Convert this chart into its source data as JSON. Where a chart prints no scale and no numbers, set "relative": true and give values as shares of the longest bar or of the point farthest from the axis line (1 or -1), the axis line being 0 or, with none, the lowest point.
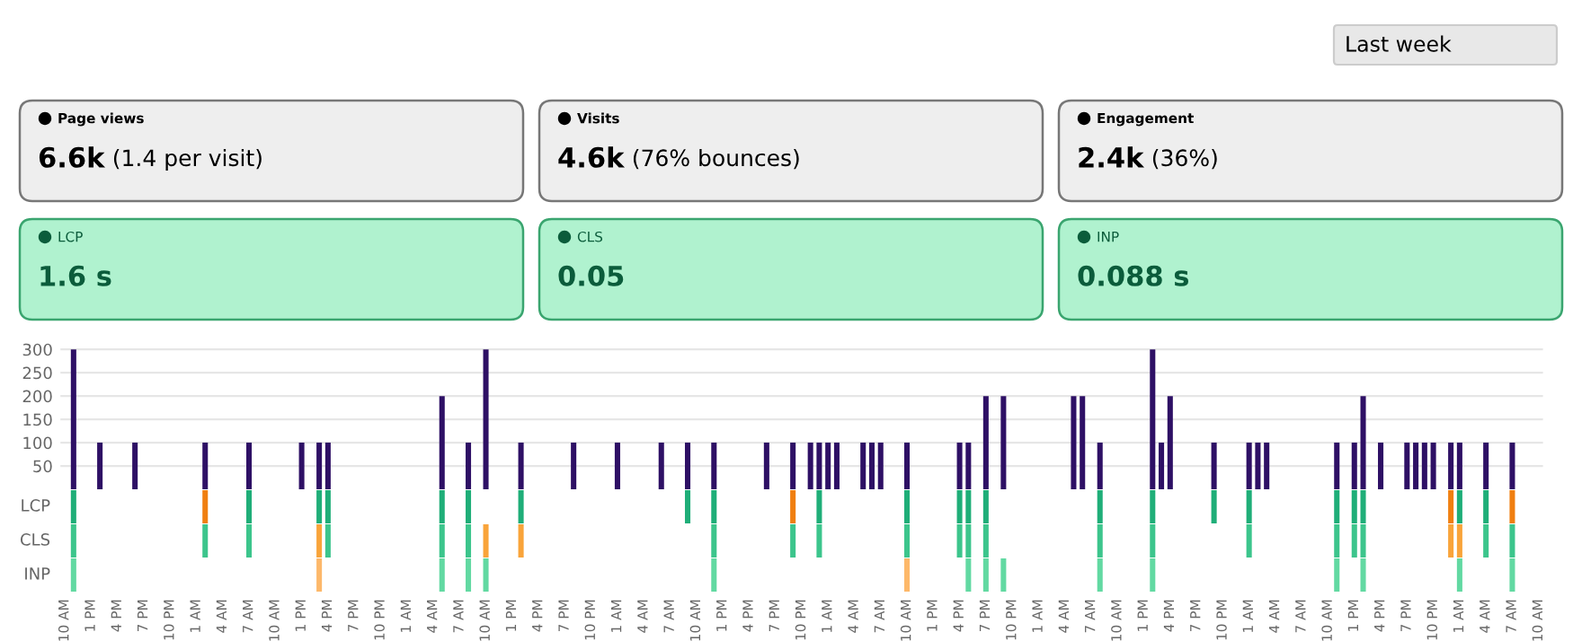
{
  "chart_data": [
    {
      "type": "other",
      "title": "Last week",
      "categories": [
        "Page views",
        "Visits",
        "Engagement",
        "LCP",
        "CLS",
        "INP"
      ],
      "value_labels": [
        "6.6k",
        "4.6k",
        "2.4k",
        "1.6 s",
        "0.05",
        "0.088 s"
      ],
      "annotations": [
        "(1.4 per visit)",
        "(76% bounces)",
        "(36%)"
      ],
      "colors": [
        "#eeeeee",
        "#eeeeee",
        "#eeeeee",
        "#b0f2cf",
        "#b0f2cf",
        "#b0f2cf"
      ]
    },
    {
      "type": "bar",
      "color": "#2e1065",
      "ylim": [
        0,
        310
      ],
      "yticks": [
        50,
        100,
        150,
        200,
        250,
        300
      ],
      "grid": "y",
      "tick_labels": "y",
      "categories": [
        null,
        null,
        null,
        null,
        null,
        null,
        null,
        null,
        null,
        null,
        null,
        null,
        null,
        null,
        null,
        null,
        null,
        null,
        null,
        null,
        null,
        null,
        null,
        null,
        null,
        null,
        null,
        null,
        null,
        null,
        null,
        null,
        null,
        null,
        null,
        null,
        null,
        null,
        null,
        null,
        null,
        null,
        null,
        null,
        null,
        null,
        null,
        null,
        null,
        null,
        null,
        null,
        null,
        null,
        null,
        null,
        null,
        null,
        null,
        null,
        null,
        null,
        null,
        null,
        null,
        null,
        null,
        null,
        null,
        null,
        null,
        null,
        null,
        null,
        null,
        null,
        null,
        null,
        null,
        null,
        null,
        null,
        null,
        null,
        null,
        null,
        null,
        null,
        null,
        null,
        null,
        null,
        null,
        null,
        null,
        null,
        null,
        null,
        null,
        null,
        null,
        null,
        null,
        null,
        null,
        null,
        null,
        null,
        null,
        null,
        null,
        null,
        null,
        null,
        null,
        null,
        null,
        null,
        null,
        null,
        null,
        null,
        null,
        null,
        null,
        null,
        null,
        null,
        null,
        null,
        null,
        null,
        null,
        null,
        null,
        null,
        null,
        null,
        null,
        null,
        null,
        null,
        null,
        null,
        null,
        null,
        null,
        null,
        null,
        null,
        null,
        null,
        null,
        null,
        null,
        null,
        null,
        null,
        null,
        null,
        null,
        null,
        null,
        null,
        null,
        null,
        null,
        null,
        null
      ],
      "values": [
        null,
        300,
        null,
        null,
        100,
        null,
        null,
        null,
        100,
        null,
        null,
        null,
        null,
        null,
        null,
        null,
        100,
        null,
        null,
        null,
        null,
        100,
        null,
        null,
        null,
        null,
        null,
        100,
        null,
        100,
        100,
        null,
        null,
        null,
        null,
        null,
        null,
        null,
        null,
        null,
        null,
        null,
        null,
        200,
        null,
        null,
        100,
        null,
        300,
        null,
        null,
        null,
        100,
        null,
        null,
        null,
        null,
        null,
        100,
        null,
        null,
        null,
        null,
        100,
        null,
        null,
        null,
        null,
        100,
        null,
        null,
        100,
        null,
        null,
        100,
        null,
        null,
        null,
        null,
        null,
        100,
        null,
        null,
        100,
        null,
        100,
        100,
        100,
        100,
        null,
        null,
        100,
        100,
        100,
        null,
        null,
        100,
        null,
        null,
        null,
        null,
        null,
        100,
        100,
        null,
        200,
        null,
        200,
        null,
        null,
        null,
        null,
        null,
        null,
        null,
        200,
        200,
        null,
        100,
        null,
        null,
        null,
        null,
        null,
        300,
        100,
        200,
        null,
        null,
        null,
        null,
        100,
        null,
        null,
        null,
        100,
        100,
        100,
        null,
        null,
        null,
        null,
        null,
        null,
        null,
        100,
        null,
        100,
        200,
        null,
        100,
        null,
        null,
        100,
        100,
        100,
        100,
        null,
        100,
        100,
        null,
        null,
        100,
        null,
        null,
        100,
        null,
        null,
        null
      ]
    },
    {
      "type": "bar",
      "relative": true,
      "ylabel": "LCP",
      "categories": [
        null,
        null,
        null,
        null,
        null,
        null,
        null,
        null,
        null,
        null,
        null,
        null,
        null,
        null,
        null,
        null,
        null,
        null,
        null,
        null,
        null,
        null,
        null,
        null,
        null,
        null,
        null,
        null,
        null,
        null,
        null,
        null,
        null,
        null,
        null,
        null,
        null,
        null,
        null,
        null,
        null,
        null,
        null,
        null,
        null,
        null,
        null,
        null,
        null,
        null,
        null,
        null,
        null,
        null,
        null,
        null,
        null,
        null,
        null,
        null,
        null,
        null,
        null,
        null,
        null,
        null,
        null,
        null,
        null,
        null,
        null,
        null,
        null,
        null,
        null,
        null,
        null,
        null,
        null,
        null,
        null,
        null,
        null,
        null,
        null,
        null,
        null,
        null,
        null,
        null,
        null,
        null,
        null,
        null,
        null,
        null,
        null,
        null,
        null,
        null,
        null,
        null,
        null,
        null,
        null,
        null,
        null,
        null,
        null,
        null,
        null,
        null,
        null,
        null,
        null,
        null,
        null,
        null,
        null,
        null,
        null,
        null,
        null,
        null,
        null,
        null,
        null,
        null,
        null,
        null,
        null,
        null,
        null,
        null,
        null,
        null,
        null,
        null,
        null,
        null,
        null,
        null,
        null,
        null,
        null,
        null,
        null,
        null,
        null,
        null,
        null,
        null,
        null,
        null,
        null,
        null,
        null,
        null,
        null,
        null,
        null,
        null,
        null,
        null,
        null,
        null,
        null,
        null,
        null
      ],
      "values": [
        null,
        1,
        null,
        null,
        null,
        null,
        null,
        null,
        null,
        null,
        null,
        null,
        null,
        null,
        null,
        null,
        1,
        null,
        null,
        null,
        null,
        1,
        null,
        null,
        null,
        null,
        null,
        null,
        null,
        1,
        1,
        null,
        null,
        null,
        null,
        null,
        null,
        null,
        null,
        null,
        null,
        null,
        null,
        1,
        null,
        null,
        1,
        null,
        null,
        null,
        null,
        null,
        1,
        null,
        null,
        null,
        null,
        null,
        null,
        null,
        null,
        null,
        null,
        null,
        null,
        null,
        null,
        null,
        null,
        null,
        null,
        1,
        null,
        null,
        1,
        null,
        null,
        null,
        null,
        null,
        null,
        null,
        null,
        1,
        null,
        null,
        1,
        null,
        null,
        null,
        null,
        null,
        null,
        null,
        null,
        null,
        1,
        null,
        null,
        null,
        null,
        null,
        1,
        1,
        null,
        1,
        null,
        null,
        null,
        null,
        null,
        null,
        null,
        null,
        null,
        null,
        null,
        null,
        1,
        null,
        null,
        null,
        null,
        null,
        1,
        null,
        null,
        null,
        null,
        null,
        null,
        1,
        null,
        null,
        null,
        1,
        null,
        null,
        null,
        null,
        null,
        null,
        null,
        null,
        null,
        1,
        null,
        1,
        1,
        null,
        null,
        null,
        null,
        null,
        null,
        null,
        null,
        null,
        1,
        1,
        null,
        null,
        1,
        null,
        null,
        1,
        null,
        null,
        null
      ],
      "colors": [
        null,
        "#1fae78",
        null,
        null,
        null,
        null,
        null,
        null,
        null,
        null,
        null,
        null,
        null,
        null,
        null,
        null,
        "#f07f10",
        null,
        null,
        null,
        null,
        "#1fae78",
        null,
        null,
        null,
        null,
        null,
        null,
        null,
        "#1fae78",
        "#1fae78",
        null,
        null,
        null,
        null,
        null,
        null,
        null,
        null,
        null,
        null,
        null,
        null,
        "#1fae78",
        null,
        null,
        "#1fae78",
        null,
        null,
        null,
        null,
        null,
        "#1fae78",
        null,
        null,
        null,
        null,
        null,
        null,
        null,
        null,
        null,
        null,
        null,
        null,
        null,
        null,
        null,
        null,
        null,
        null,
        "#1fae78",
        null,
        null,
        "#1fae78",
        null,
        null,
        null,
        null,
        null,
        null,
        null,
        null,
        "#f07f10",
        null,
        null,
        "#1fae78",
        null,
        null,
        null,
        null,
        null,
        null,
        null,
        null,
        null,
        "#1fae78",
        null,
        null,
        null,
        null,
        null,
        "#1fae78",
        "#1fae78",
        null,
        "#1fae78",
        null,
        null,
        null,
        null,
        null,
        null,
        null,
        null,
        null,
        null,
        null,
        null,
        "#1fae78",
        null,
        null,
        null,
        null,
        null,
        "#1fae78",
        null,
        null,
        null,
        null,
        null,
        null,
        "#1fae78",
        null,
        null,
        null,
        "#1fae78",
        null,
        null,
        null,
        null,
        null,
        null,
        null,
        null,
        null,
        "#1fae78",
        null,
        "#1fae78",
        "#1fae78",
        null,
        null,
        null,
        null,
        null,
        null,
        null,
        null,
        null,
        "#f07f10",
        "#1fae78",
        null,
        null,
        "#1fae78",
        null,
        null,
        "#f07f10",
        null,
        null,
        null
      ]
    },
    {
      "type": "bar",
      "relative": true,
      "ylabel": "CLS",
      "categories": [
        null,
        null,
        null,
        null,
        null,
        null,
        null,
        null,
        null,
        null,
        null,
        null,
        null,
        null,
        null,
        null,
        null,
        null,
        null,
        null,
        null,
        null,
        null,
        null,
        null,
        null,
        null,
        null,
        null,
        null,
        null,
        null,
        null,
        null,
        null,
        null,
        null,
        null,
        null,
        null,
        null,
        null,
        null,
        null,
        null,
        null,
        null,
        null,
        null,
        null,
        null,
        null,
        null,
        null,
        null,
        null,
        null,
        null,
        null,
        null,
        null,
        null,
        null,
        null,
        null,
        null,
        null,
        null,
        null,
        null,
        null,
        null,
        null,
        null,
        null,
        null,
        null,
        null,
        null,
        null,
        null,
        null,
        null,
        null,
        null,
        null,
        null,
        null,
        null,
        null,
        null,
        null,
        null,
        null,
        null,
        null,
        null,
        null,
        null,
        null,
        null,
        null,
        null,
        null,
        null,
        null,
        null,
        null,
        null,
        null,
        null,
        null,
        null,
        null,
        null,
        null,
        null,
        null,
        null,
        null,
        null,
        null,
        null,
        null,
        null,
        null,
        null,
        null,
        null,
        null,
        null,
        null,
        null,
        null,
        null,
        null,
        null,
        null,
        null,
        null,
        null,
        null,
        null,
        null,
        null,
        null,
        null,
        null,
        null,
        null,
        null,
        null,
        null,
        null,
        null,
        null,
        null,
        null,
        null,
        null,
        null,
        null,
        null,
        null,
        null,
        null,
        null,
        null,
        null
      ],
      "values": [
        null,
        1,
        null,
        null,
        null,
        null,
        null,
        null,
        null,
        null,
        null,
        null,
        null,
        null,
        null,
        null,
        1,
        null,
        null,
        null,
        null,
        1,
        null,
        null,
        null,
        null,
        null,
        null,
        null,
        1,
        1,
        null,
        null,
        null,
        null,
        null,
        null,
        null,
        null,
        null,
        null,
        null,
        null,
        1,
        null,
        null,
        1,
        null,
        1,
        null,
        null,
        null,
        1,
        null,
        null,
        null,
        null,
        null,
        null,
        null,
        null,
        null,
        null,
        null,
        null,
        null,
        null,
        null,
        null,
        null,
        null,
        null,
        null,
        null,
        1,
        null,
        null,
        null,
        null,
        null,
        null,
        null,
        null,
        1,
        null,
        null,
        1,
        null,
        null,
        null,
        null,
        null,
        null,
        null,
        null,
        null,
        1,
        null,
        null,
        null,
        null,
        null,
        1,
        1,
        null,
        1,
        null,
        null,
        null,
        null,
        null,
        null,
        null,
        null,
        null,
        null,
        null,
        null,
        1,
        null,
        null,
        null,
        null,
        null,
        1,
        null,
        null,
        null,
        null,
        null,
        null,
        null,
        null,
        null,
        null,
        1,
        null,
        null,
        null,
        null,
        null,
        null,
        null,
        null,
        null,
        1,
        null,
        1,
        1,
        null,
        null,
        null,
        null,
        null,
        null,
        null,
        null,
        null,
        1,
        1,
        null,
        null,
        1,
        null,
        null,
        1,
        null,
        null,
        null
      ],
      "colors": [
        null,
        "#3cc58c",
        null,
        null,
        null,
        null,
        null,
        null,
        null,
        null,
        null,
        null,
        null,
        null,
        null,
        null,
        "#3cc58c",
        null,
        null,
        null,
        null,
        "#3cc58c",
        null,
        null,
        null,
        null,
        null,
        null,
        null,
        "#f9a43a",
        "#3cc58c",
        null,
        null,
        null,
        null,
        null,
        null,
        null,
        null,
        null,
        null,
        null,
        null,
        "#3cc58c",
        null,
        null,
        "#3cc58c",
        null,
        "#f9a43a",
        null,
        null,
        null,
        "#f9a43a",
        null,
        null,
        null,
        null,
        null,
        null,
        null,
        null,
        null,
        null,
        null,
        null,
        null,
        null,
        null,
        null,
        null,
        null,
        null,
        null,
        null,
        "#3cc58c",
        null,
        null,
        null,
        null,
        null,
        null,
        null,
        null,
        "#3cc58c",
        null,
        null,
        "#3cc58c",
        null,
        null,
        null,
        null,
        null,
        null,
        null,
        null,
        null,
        "#3cc58c",
        null,
        null,
        null,
        null,
        null,
        "#3cc58c",
        "#3cc58c",
        null,
        "#3cc58c",
        null,
        null,
        null,
        null,
        null,
        null,
        null,
        null,
        null,
        null,
        null,
        null,
        "#3cc58c",
        null,
        null,
        null,
        null,
        null,
        "#3cc58c",
        null,
        null,
        null,
        null,
        null,
        null,
        null,
        null,
        null,
        null,
        "#3cc58c",
        null,
        null,
        null,
        null,
        null,
        null,
        null,
        null,
        null,
        "#3cc58c",
        null,
        "#3cc58c",
        "#3cc58c",
        null,
        null,
        null,
        null,
        null,
        null,
        null,
        null,
        null,
        "#f9a43a",
        "#f9a43a",
        null,
        null,
        "#3cc58c",
        null,
        null,
        "#3cc58c",
        null,
        null,
        null
      ]
    },
    {
      "type": "bar",
      "relative": true,
      "ylabel": "INP",
      "tick_labels": "x",
      "categories": [
        "10 AM",
        null,
        null,
        "1 PM",
        null,
        null,
        "4 PM",
        null,
        null,
        "7 PM",
        null,
        null,
        "10 PM",
        null,
        null,
        "1 AM",
        null,
        null,
        "4 AM",
        null,
        null,
        "7 AM",
        null,
        null,
        "10 AM",
        null,
        null,
        "1 PM",
        null,
        null,
        "4 PM",
        null,
        null,
        "7 PM",
        null,
        null,
        "10 PM",
        null,
        null,
        "1 AM",
        null,
        null,
        "4 AM",
        null,
        null,
        "7 AM",
        null,
        null,
        "10 AM",
        null,
        null,
        "1 PM",
        null,
        null,
        "4 PM",
        null,
        null,
        "7 PM",
        null,
        null,
        "10 PM",
        null,
        null,
        "1 AM",
        null,
        null,
        "4 AM",
        null,
        null,
        "7 AM",
        null,
        null,
        "10 AM",
        null,
        null,
        "1 PM",
        null,
        null,
        "4 PM",
        null,
        null,
        "7 PM",
        null,
        null,
        "10 PM",
        null,
        null,
        "1 AM",
        null,
        null,
        "4 AM",
        null,
        null,
        "7 AM",
        null,
        null,
        "10 AM",
        null,
        null,
        "1 PM",
        null,
        null,
        "4 PM",
        null,
        null,
        "7 PM",
        null,
        null,
        "10 PM",
        null,
        null,
        "1 AM",
        null,
        null,
        "4 AM",
        null,
        null,
        "7 AM",
        null,
        null,
        "10 AM",
        null,
        null,
        "1 PM",
        null,
        null,
        "4 PM",
        null,
        null,
        "7 PM",
        null,
        null,
        "10 PM",
        null,
        null,
        "1 AM",
        null,
        null,
        "4 AM",
        null,
        null,
        "7 AM",
        null,
        null,
        "10 AM",
        null,
        null,
        "1 PM",
        null,
        null,
        "4 PM",
        null,
        null,
        "7 PM",
        null,
        null,
        "10 PM",
        null,
        null,
        "1 AM",
        null,
        null,
        "4 AM",
        null,
        null,
        "7 AM",
        null,
        null,
        "10 AM"
      ],
      "values": [
        null,
        1,
        null,
        null,
        null,
        null,
        null,
        null,
        null,
        null,
        null,
        null,
        null,
        null,
        null,
        null,
        null,
        null,
        null,
        null,
        null,
        null,
        null,
        null,
        null,
        null,
        null,
        null,
        null,
        1,
        null,
        null,
        null,
        null,
        null,
        null,
        null,
        null,
        null,
        null,
        null,
        null,
        null,
        1,
        null,
        null,
        1,
        null,
        1,
        null,
        null,
        null,
        null,
        null,
        null,
        null,
        null,
        null,
        null,
        null,
        null,
        null,
        null,
        null,
        null,
        null,
        null,
        null,
        null,
        null,
        null,
        null,
        null,
        null,
        1,
        null,
        null,
        null,
        null,
        null,
        null,
        null,
        null,
        null,
        null,
        null,
        null,
        null,
        null,
        null,
        null,
        null,
        null,
        null,
        null,
        null,
        1,
        null,
        null,
        null,
        null,
        null,
        null,
        1,
        null,
        1,
        null,
        1,
        null,
        null,
        null,
        null,
        null,
        null,
        null,
        null,
        null,
        null,
        1,
        null,
        null,
        null,
        null,
        null,
        1,
        null,
        null,
        null,
        null,
        null,
        null,
        null,
        null,
        null,
        null,
        null,
        null,
        null,
        null,
        null,
        null,
        null,
        null,
        null,
        null,
        1,
        null,
        null,
        1,
        null,
        null,
        null,
        null,
        null,
        null,
        null,
        null,
        null,
        null,
        1,
        null,
        null,
        null,
        null,
        null,
        1,
        null,
        null,
        null
      ],
      "colors": [
        null,
        "#62d9a2",
        null,
        null,
        null,
        null,
        null,
        null,
        null,
        null,
        null,
        null,
        null,
        null,
        null,
        null,
        null,
        null,
        null,
        null,
        null,
        null,
        null,
        null,
        null,
        null,
        null,
        null,
        null,
        "#fdb86a",
        null,
        null,
        null,
        null,
        null,
        null,
        null,
        null,
        null,
        null,
        null,
        null,
        null,
        "#62d9a2",
        null,
        null,
        "#62d9a2",
        null,
        "#62d9a2",
        null,
        null,
        null,
        null,
        null,
        null,
        null,
        null,
        null,
        null,
        null,
        null,
        null,
        null,
        null,
        null,
        null,
        null,
        null,
        null,
        null,
        null,
        null,
        null,
        null,
        "#62d9a2",
        null,
        null,
        null,
        null,
        null,
        null,
        null,
        null,
        null,
        null,
        null,
        null,
        null,
        null,
        null,
        null,
        null,
        null,
        null,
        null,
        null,
        "#fdb86a",
        null,
        null,
        null,
        null,
        null,
        null,
        "#62d9a2",
        null,
        "#62d9a2",
        null,
        "#62d9a2",
        null,
        null,
        null,
        null,
        null,
        null,
        null,
        null,
        null,
        null,
        "#62d9a2",
        null,
        null,
        null,
        null,
        null,
        "#62d9a2",
        null,
        null,
        null,
        null,
        null,
        null,
        null,
        null,
        null,
        null,
        null,
        null,
        null,
        null,
        null,
        null,
        null,
        null,
        null,
        null,
        "#62d9a2",
        null,
        null,
        "#62d9a2",
        null,
        null,
        null,
        null,
        null,
        null,
        null,
        null,
        null,
        null,
        "#62d9a2",
        null,
        null,
        null,
        null,
        null,
        "#62d9a2",
        null,
        null,
        null
      ]
    }
  ]
}
